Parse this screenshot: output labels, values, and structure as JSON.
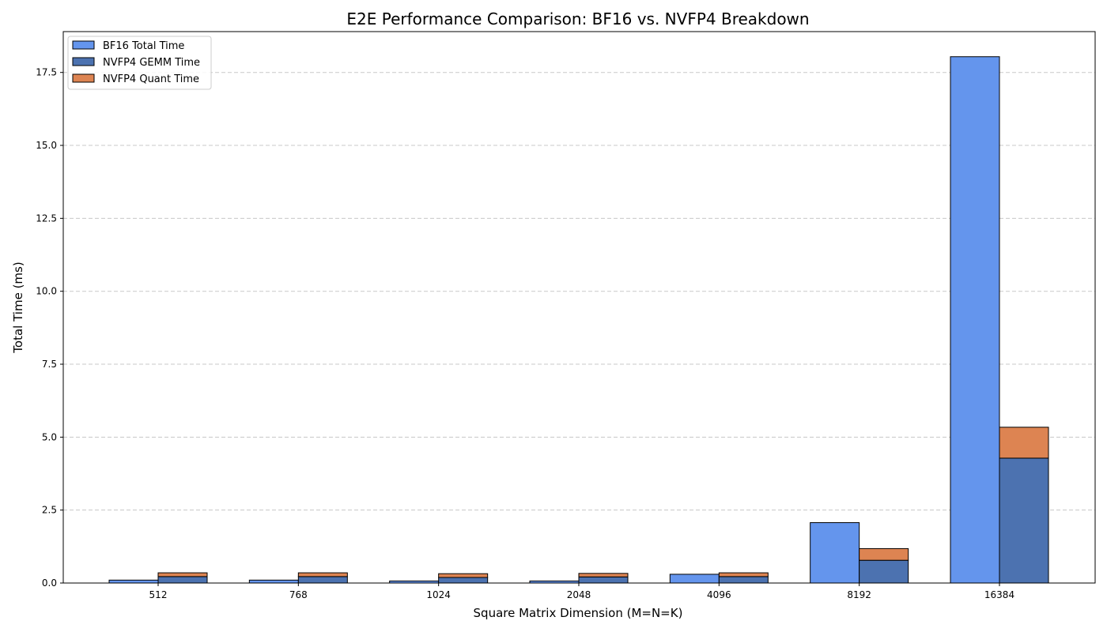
{
  "chart_data": {
    "type": "bar",
    "title": "E2E Performance Comparison: BF16 vs. NVFP4 Breakdown",
    "xlabel": "Square Matrix Dimension (M=N=K)",
    "ylabel": "Total Time (ms)",
    "categories": [
      "512",
      "768",
      "1024",
      "2048",
      "4096",
      "8192",
      "16384"
    ],
    "ylim": [
      0,
      18.9
    ],
    "yticks": [
      "0.0",
      "2.5",
      "5.0",
      "7.5",
      "10.0",
      "12.5",
      "15.0",
      "17.5"
    ],
    "grid": "y-dashed",
    "legend_position": "top-left",
    "series": [
      {
        "name": "BF16 Total Time",
        "color": "#6495ED",
        "stack": "bf16",
        "values": [
          0.1,
          0.1,
          0.07,
          0.07,
          0.3,
          2.07,
          18.04
        ]
      },
      {
        "name": "NVFP4 GEMM Time",
        "color": "#4C72B0",
        "stack": "nvfp4",
        "values": [
          0.22,
          0.22,
          0.19,
          0.21,
          0.22,
          0.78,
          4.28
        ]
      },
      {
        "name": "NVFP4 Quant Time",
        "color": "#DD8452",
        "stack": "nvfp4",
        "values": [
          0.13,
          0.13,
          0.13,
          0.12,
          0.13,
          0.4,
          1.06
        ]
      }
    ]
  }
}
